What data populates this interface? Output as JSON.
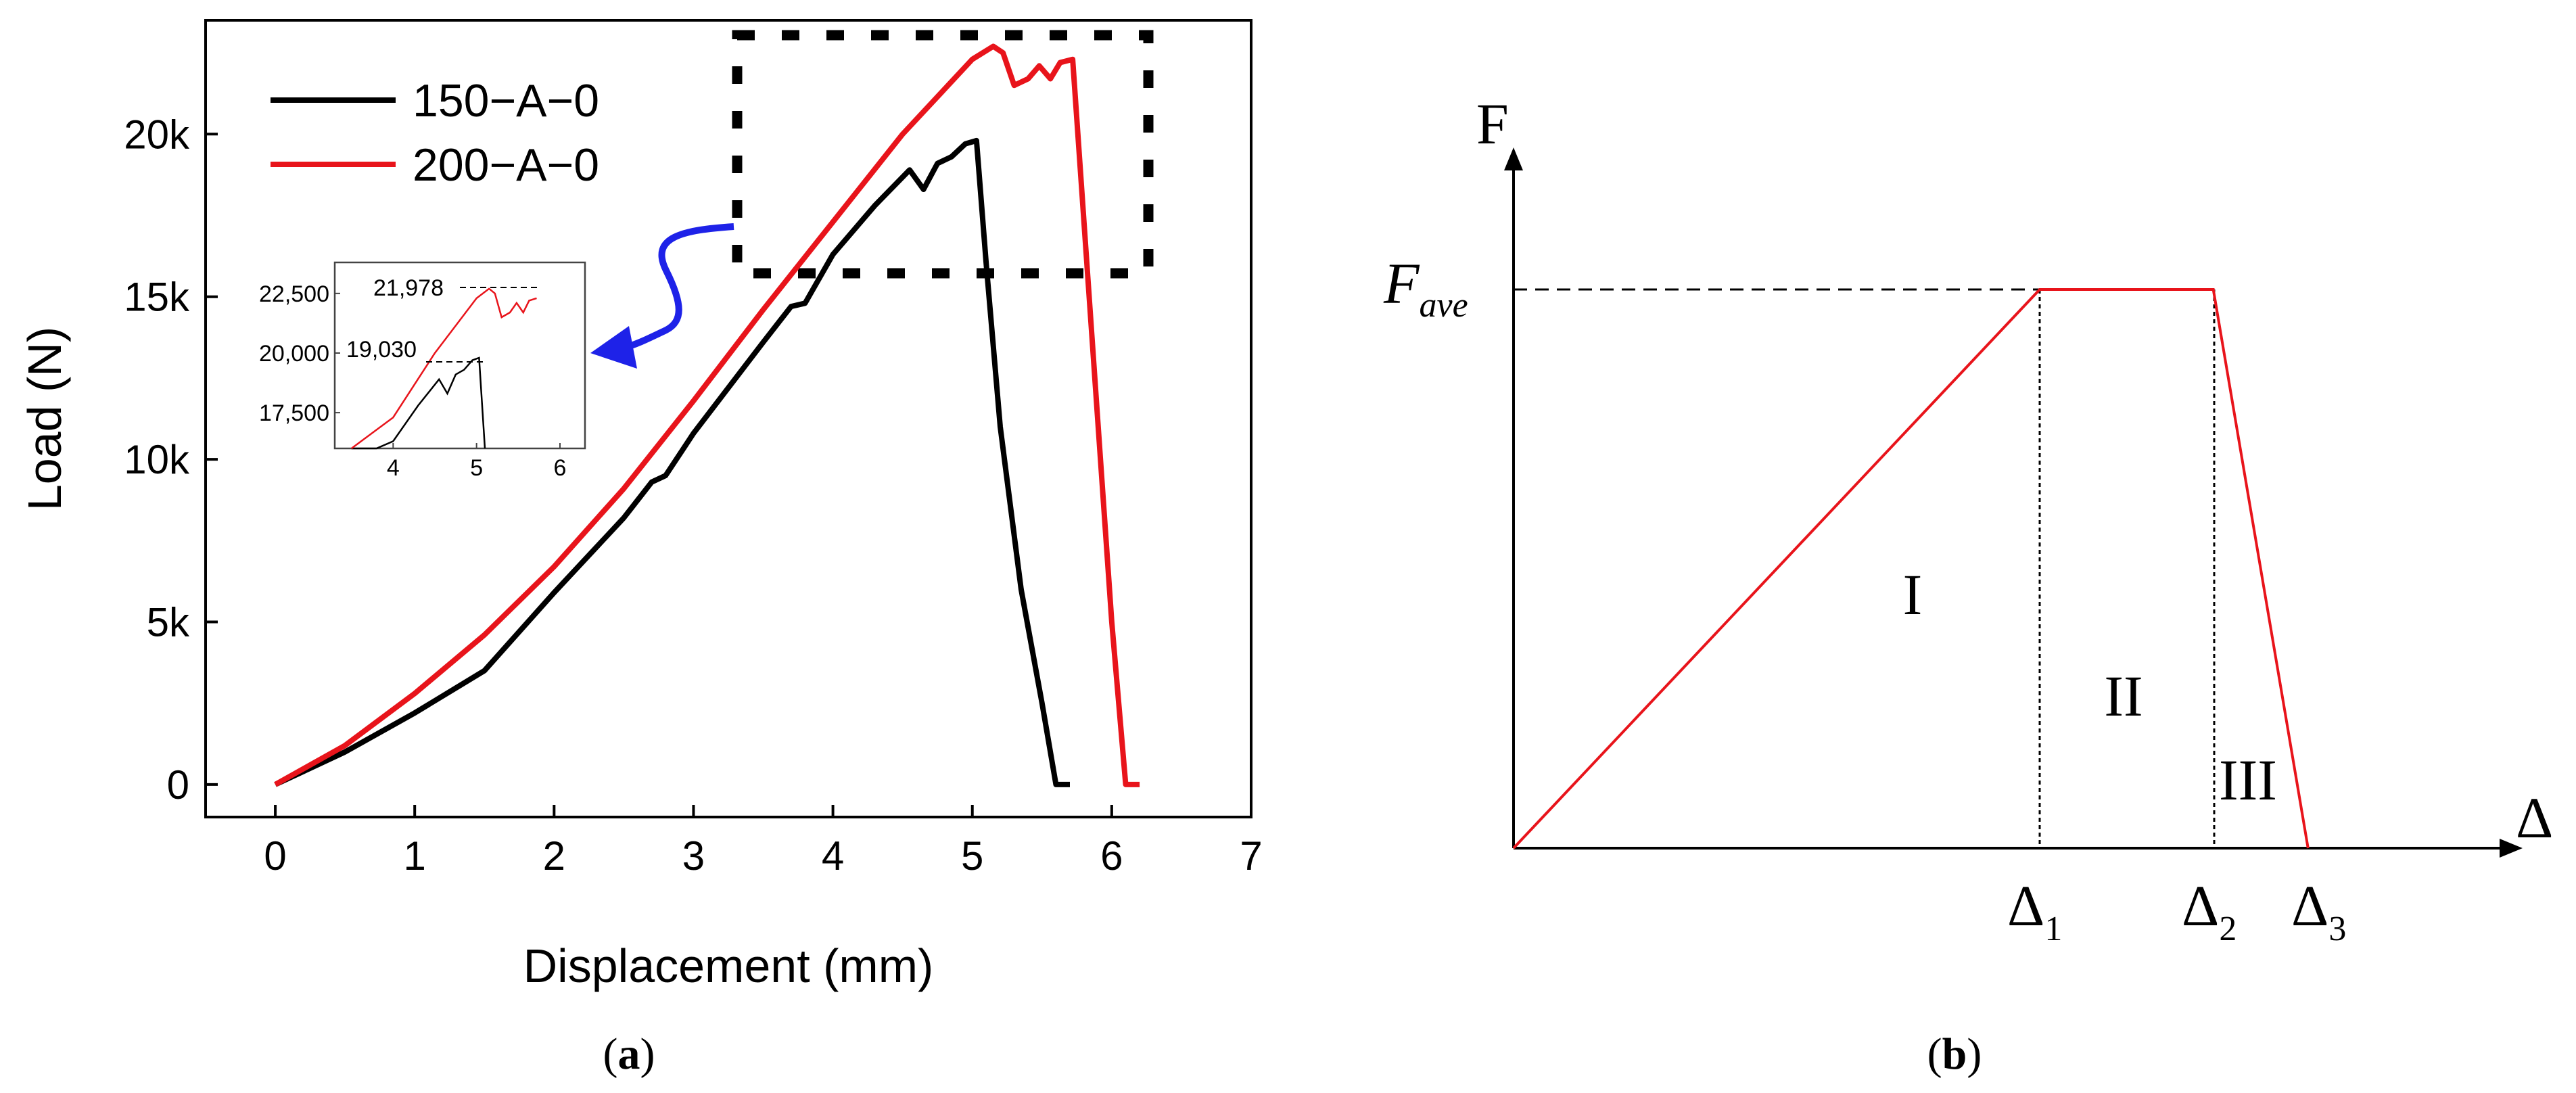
{
  "chart_data": [
    {
      "type": "line",
      "panel_label": "(a)",
      "panel_label_letter": "a",
      "xlabel": "Displacement (mm)",
      "ylabel": "Load (N)",
      "xlim": [
        -0.5,
        7
      ],
      "ylim": [
        -1000,
        23500
      ],
      "x_ticks": [
        0,
        1,
        2,
        3,
        4,
        5,
        6,
        7
      ],
      "y_ticks": [
        0,
        5000,
        10000,
        15000,
        20000
      ],
      "x_tick_labels": [
        "0",
        "1",
        "2",
        "3",
        "4",
        "5",
        "6",
        "7"
      ],
      "y_tick_labels": [
        "0",
        "5k",
        "10k",
        "15k",
        "20k"
      ],
      "grid": false,
      "legend_position": "top-left",
      "series": [
        {
          "name": "150−A−0",
          "color": "#000000",
          "x": [
            0,
            0.2,
            0.5,
            1.0,
            1.5,
            2.0,
            2.5,
            2.7,
            2.8,
            3.0,
            3.5,
            3.7,
            3.8,
            4.0,
            4.3,
            4.55,
            4.65,
            4.75,
            4.85,
            4.95,
            5.03,
            5.1,
            5.2,
            5.35,
            5.5,
            5.6,
            5.7
          ],
          "y": [
            0,
            400,
            1000,
            2200,
            3500,
            5900,
            8200,
            9300,
            9500,
            10800,
            13600,
            14700,
            14800,
            16300,
            17800,
            18900,
            18300,
            19100,
            19300,
            19700,
            19800,
            16000,
            11000,
            6000,
            2500,
            0,
            0
          ]
        },
        {
          "name": "200−A−0",
          "color": "#e8141b",
          "x": [
            0,
            0.5,
            1.0,
            1.5,
            2.0,
            2.5,
            3.0,
            3.5,
            4.0,
            4.5,
            5.0,
            5.15,
            5.22,
            5.3,
            5.4,
            5.48,
            5.56,
            5.63,
            5.72,
            6.0,
            6.1,
            6.2
          ],
          "y": [
            0,
            1200,
            2800,
            4600,
            6700,
            9100,
            11800,
            14600,
            17300,
            20000,
            22300,
            22700,
            22500,
            21500,
            21700,
            22100,
            21700,
            22200,
            22300,
            5000,
            0,
            0
          ]
        }
      ],
      "inset": {
        "xlim": [
          3.3,
          6.3
        ],
        "ylim": [
          16000,
          23800
        ],
        "x_ticks": [
          4,
          5,
          6
        ],
        "y_ticks": [
          17500,
          20000,
          22500
        ],
        "x_tick_labels": [
          "4",
          "5",
          "6"
        ],
        "y_tick_labels": [
          "17,500",
          "20,000",
          "22,500"
        ],
        "annotations": [
          "21,978",
          "19,030"
        ],
        "annotation_values": [
          21978,
          19030
        ]
      },
      "arrow_color": "#1e22e8"
    },
    {
      "type": "line",
      "panel_label": "(b)",
      "panel_label_letter": "b",
      "xlabel": "Δ",
      "ylabel": "F",
      "favg_label": "F",
      "favg_sub": "ave",
      "delta_symbol": "Δ",
      "delta_subs": [
        "1",
        "2",
        "3"
      ],
      "region_labels": [
        "I",
        "II",
        "III"
      ],
      "line_color": "#e8141b",
      "series": [
        {
          "name": "",
          "x": [
            0,
            1,
            1.33,
            1.51
          ],
          "y": [
            0,
            1,
            1,
            0
          ]
        }
      ]
    }
  ]
}
